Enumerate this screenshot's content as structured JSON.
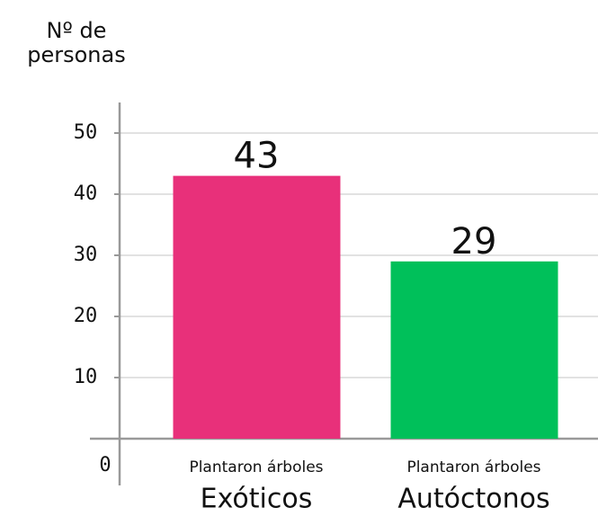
{
  "chart_data": {
    "type": "bar",
    "ylabel": [
      "Nº de",
      "personas"
    ],
    "categories": [
      "Exóticos",
      "Autóctonos"
    ],
    "category_prefixes": [
      "Plantaron árboles",
      "Plantaron árboles"
    ],
    "values": [
      43,
      29
    ],
    "colors": [
      "#e8307a",
      "#00c05a"
    ],
    "ylim": [
      0,
      55
    ],
    "yticks": [
      0,
      10,
      20,
      30,
      40,
      50
    ],
    "grid": true
  }
}
